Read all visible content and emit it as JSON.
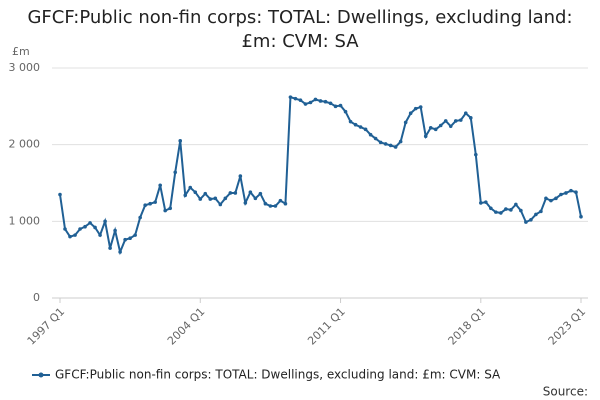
{
  "chart_data": {
    "type": "line",
    "title": "GFCF:Public non-fin corps: TOTAL: Dwellings, excluding land: £m: CVM: SA",
    "y_unit": "£m",
    "source": "Source:",
    "categories": [
      "1997 Q1",
      null,
      null,
      null,
      null,
      null,
      null,
      null,
      null,
      null,
      null,
      null,
      null,
      null,
      null,
      null,
      null,
      null,
      null,
      null,
      null,
      null,
      null,
      null,
      null,
      null,
      null,
      null,
      "2004 Q1",
      null,
      null,
      null,
      null,
      null,
      null,
      null,
      null,
      null,
      null,
      null,
      null,
      null,
      null,
      null,
      null,
      null,
      null,
      null,
      null,
      null,
      null,
      null,
      null,
      null,
      null,
      null,
      "2011 Q1",
      null,
      null,
      null,
      null,
      null,
      null,
      null,
      null,
      null,
      null,
      null,
      null,
      null,
      null,
      null,
      null,
      null,
      null,
      null,
      null,
      null,
      null,
      null,
      null,
      null,
      null,
      null,
      "2018 Q1",
      null,
      null,
      null,
      null,
      null,
      null,
      null,
      null,
      null,
      null,
      null,
      null,
      null,
      null,
      null,
      null,
      null,
      null,
      null,
      "2023 Q1"
    ],
    "series": [
      {
        "name": "GFCF:Public non-fin corps: TOTAL: Dwellings, excluding land: £m: CVM: SA",
        "color": "#206095",
        "values": [
          1350,
          900,
          800,
          820,
          900,
          930,
          980,
          920,
          820,
          1000,
          650,
          880,
          600,
          760,
          780,
          820,
          1050,
          1210,
          1230,
          1250,
          1470,
          1140,
          1170,
          1640,
          2050,
          1340,
          1440,
          1380,
          1290,
          1360,
          1290,
          1300,
          1220,
          1300,
          1370,
          1370,
          1590,
          1240,
          1380,
          1300,
          1360,
          1230,
          1200,
          1200,
          1270,
          1230,
          2620,
          2600,
          2580,
          2530,
          2550,
          2590,
          2570,
          2560,
          2540,
          2500,
          2510,
          2430,
          2300,
          2260,
          2230,
          2200,
          2130,
          2080,
          2030,
          2010,
          1990,
          1970,
          2040,
          2290,
          2410,
          2470,
          2490,
          2110,
          2220,
          2200,
          2250,
          2310,
          2240,
          2310,
          2320,
          2410,
          2350,
          1870,
          1240,
          1250,
          1170,
          1120,
          1110,
          1160,
          1150,
          1220,
          1140,
          990,
          1020,
          1090,
          1130,
          1300,
          1270,
          1300,
          1350,
          1370,
          1400,
          1380,
          1060
        ]
      }
    ],
    "ylim": [
      0,
      3000
    ],
    "yticks": [
      {
        "value": 0,
        "label": "0"
      },
      {
        "value": 1000,
        "label": "1 000"
      },
      {
        "value": 2000,
        "label": "2 000"
      },
      {
        "value": 3000,
        "label": "3 000"
      }
    ],
    "grid": true
  }
}
